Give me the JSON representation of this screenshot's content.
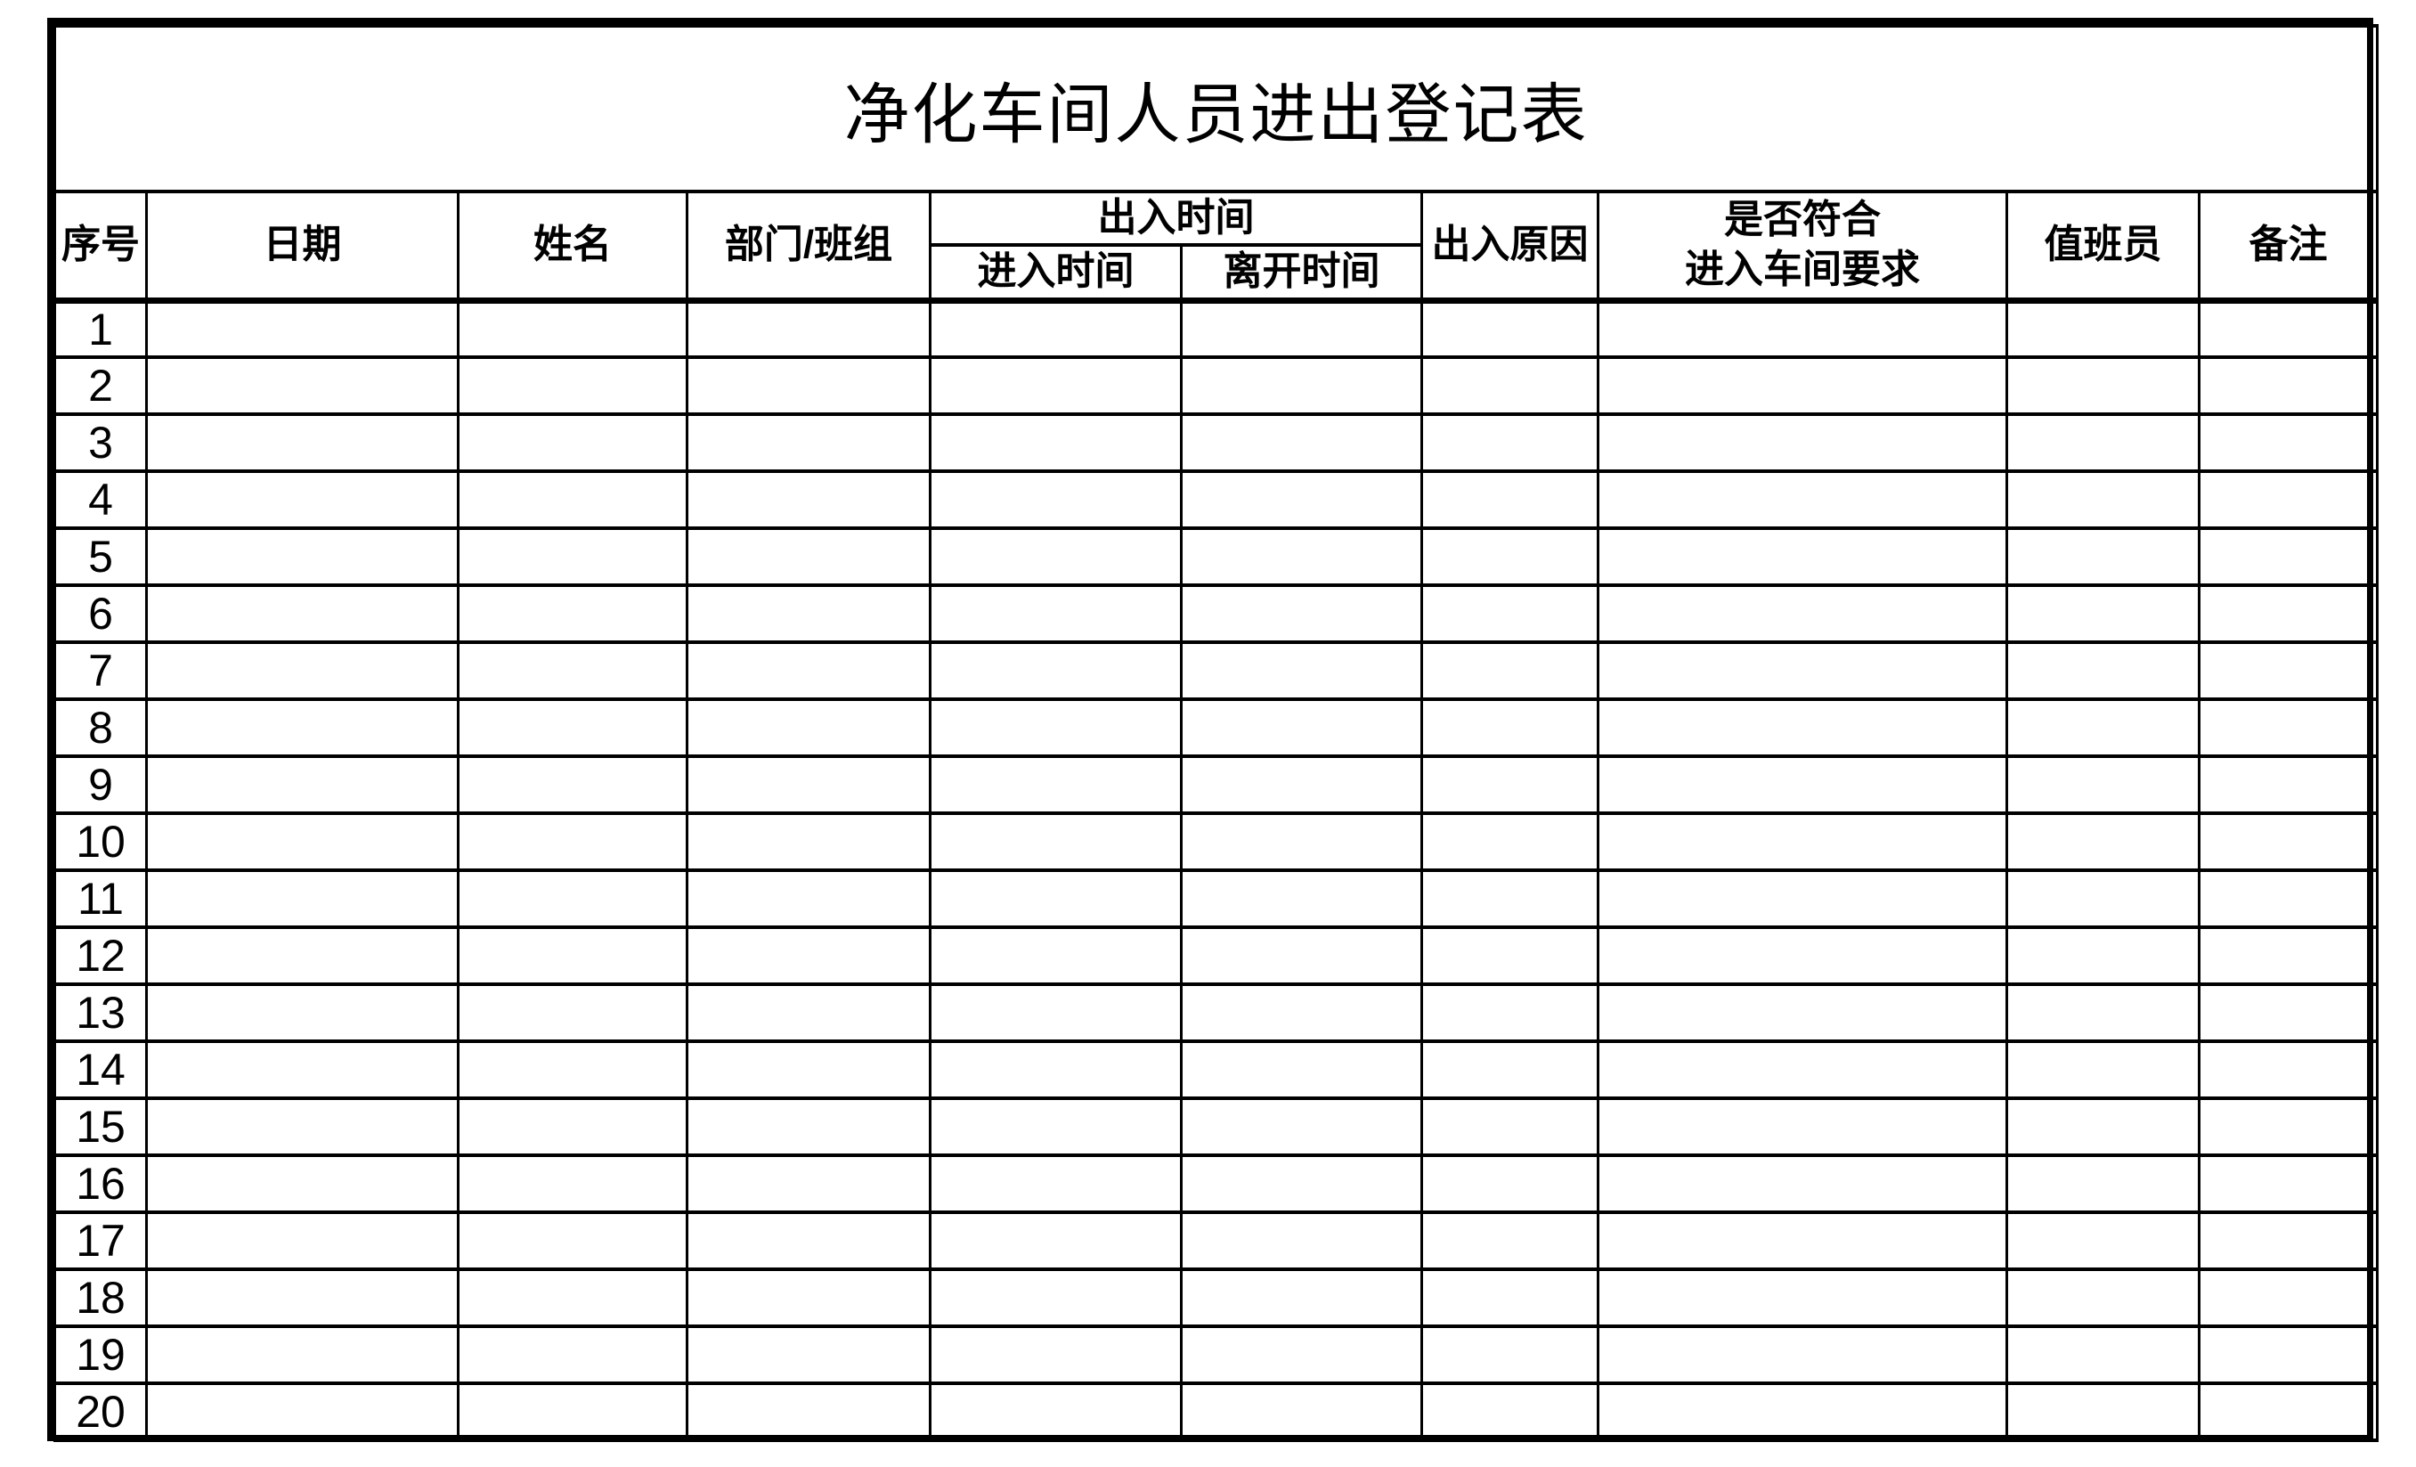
{
  "title": "净化车间人员进出登记表",
  "table": {
    "header": {
      "serial": "序号",
      "date": "日期",
      "name": "姓名",
      "department": "部门/班组",
      "time_group": "出入时间",
      "time_in": "进入时间",
      "time_out": "离开时间",
      "reason": "出入原因",
      "compliance": "是否符合\n进入车间要求",
      "duty_officer": "值班员",
      "remarks": "备注"
    },
    "empty_columns_per_row": 9,
    "rows": [
      "1",
      "2",
      "3",
      "4",
      "5",
      "6",
      "7",
      "8",
      "9",
      "10",
      "11",
      "12",
      "13",
      "14",
      "15",
      "16",
      "17",
      "18",
      "19",
      "20"
    ]
  },
  "colors": {
    "border": "#000000",
    "background": "#ffffff",
    "text": "#000000"
  }
}
